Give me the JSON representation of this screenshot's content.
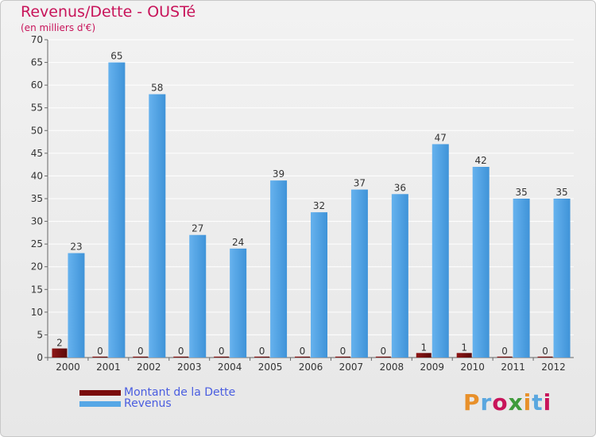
{
  "header": {
    "title": "Revenus/Dette - OUSTé",
    "subtitle": "(en milliers d'€)"
  },
  "legend": {
    "debt_label": "Montant de la Dette",
    "revenue_label": "Revenus"
  },
  "logo": {
    "text": "Proxiti"
  },
  "colors": {
    "debt": "#7a0c0c",
    "revenue": "#56a7e6",
    "title": "#c8145a",
    "legend_text": "#4a5de0"
  },
  "chart_data": {
    "type": "bar",
    "title": "Revenus/Dette - OUSTé",
    "subtitle": "(en milliers d'€)",
    "categories": [
      "2000",
      "2001",
      "2002",
      "2003",
      "2004",
      "2005",
      "2006",
      "2007",
      "2008",
      "2009",
      "2010",
      "2011",
      "2012"
    ],
    "series": [
      {
        "name": "Montant de la Dette",
        "values": [
          2,
          0,
          0,
          0,
          0,
          0,
          0,
          0,
          0,
          1,
          1,
          0,
          0
        ]
      },
      {
        "name": "Revenus",
        "values": [
          23,
          65,
          58,
          27,
          24,
          39,
          32,
          37,
          36,
          47,
          42,
          35,
          35
        ]
      }
    ],
    "ylim": [
      0,
      70
    ],
    "yticks": [
      0,
      5,
      10,
      15,
      20,
      25,
      30,
      35,
      40,
      45,
      50,
      55,
      60,
      65,
      70
    ],
    "grid": true,
    "legend_position": "bottom-left"
  }
}
